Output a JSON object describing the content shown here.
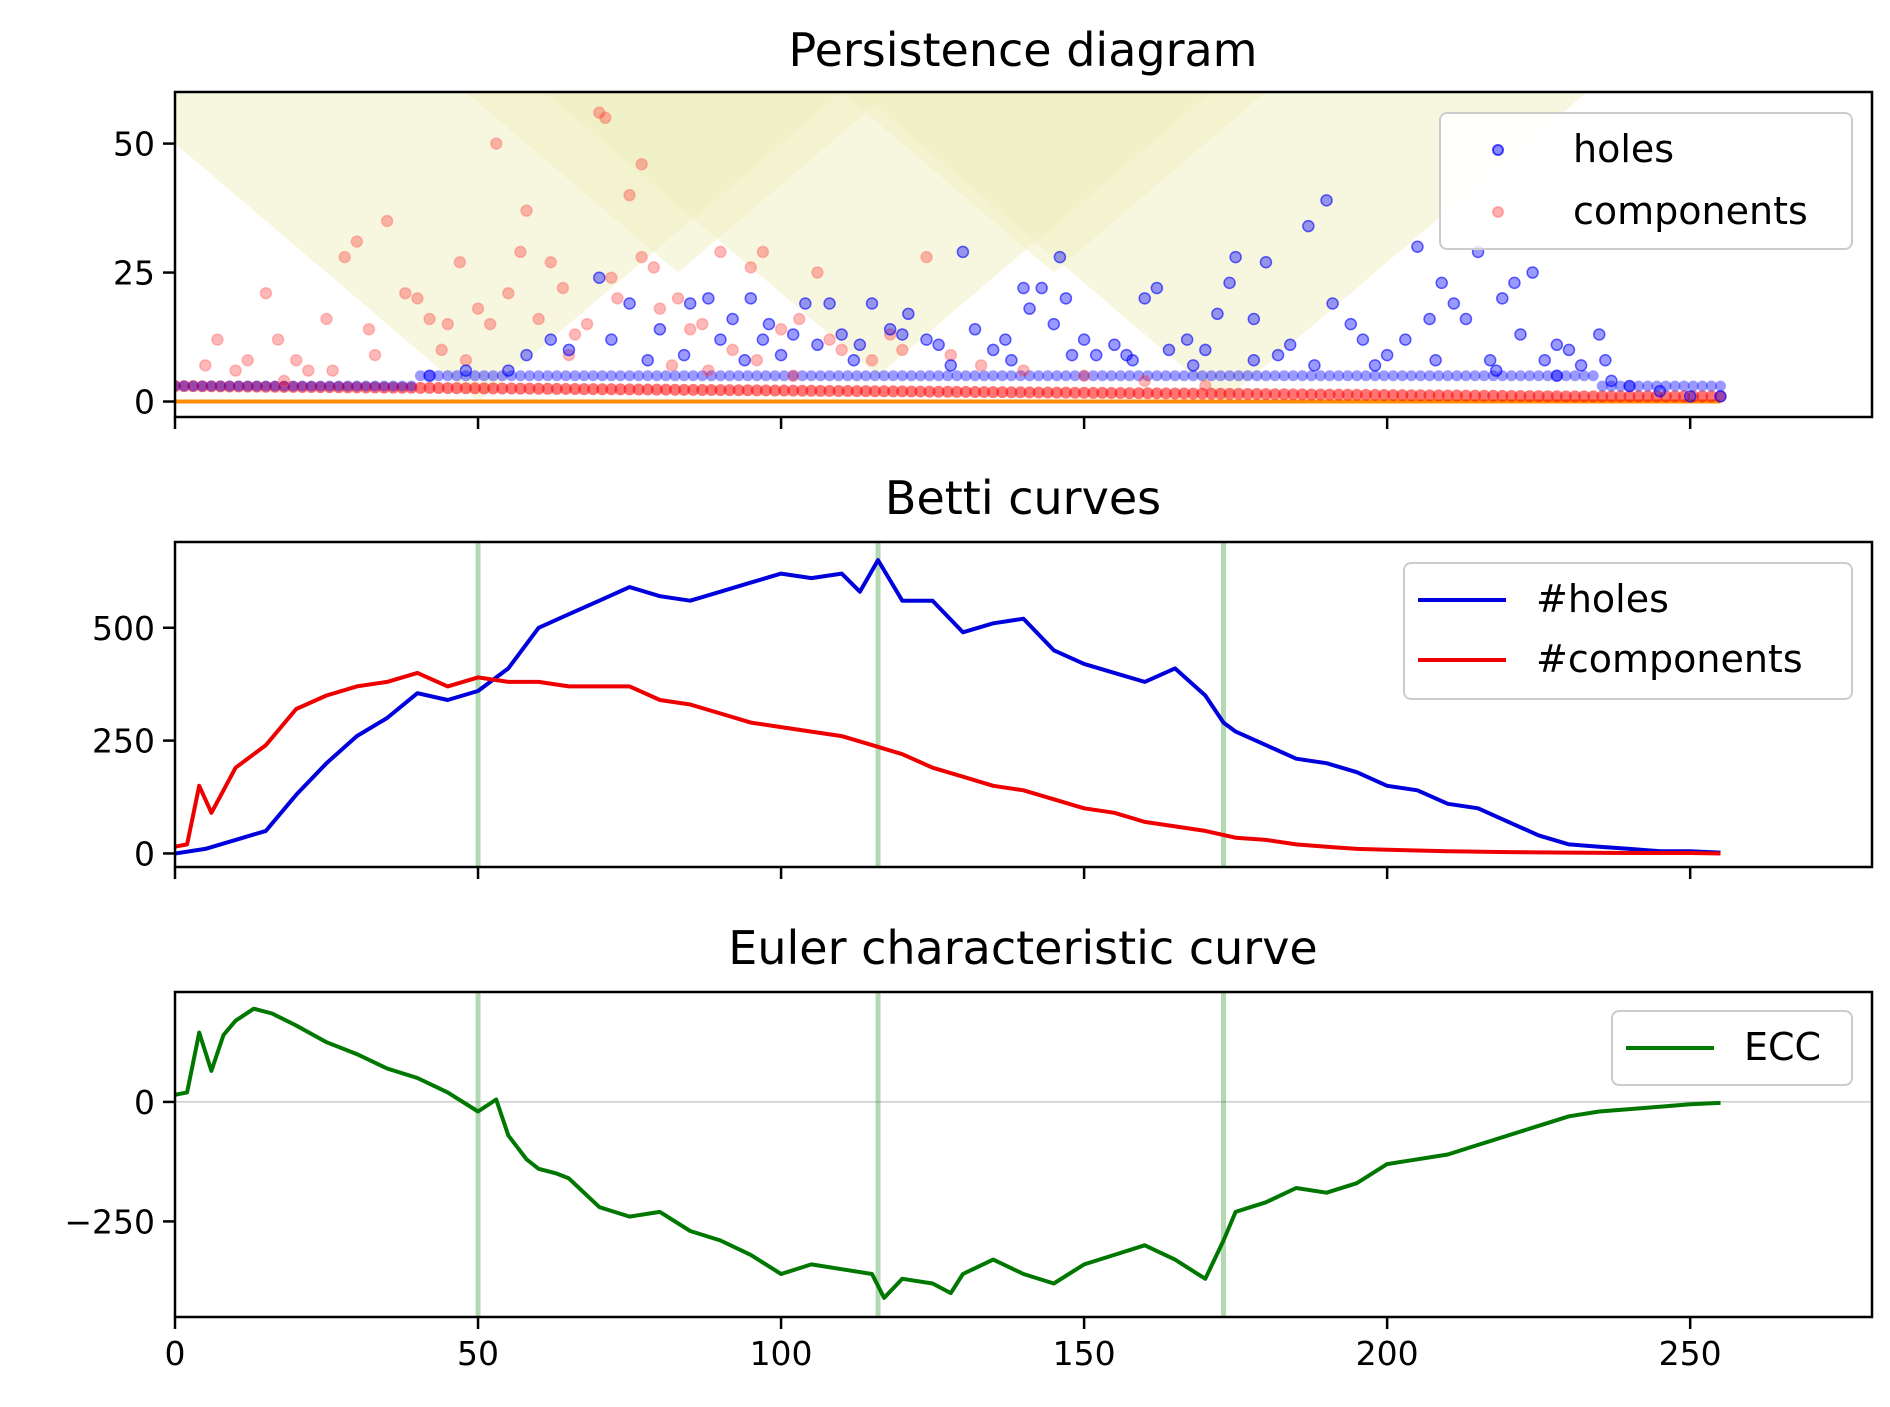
{
  "chart_data": [
    {
      "type": "scatter",
      "title": "Persistence diagram",
      "xlabel": "",
      "ylabel": "",
      "xlim": [
        0,
        280
      ],
      "ylim": [
        -3,
        60
      ],
      "xticks": [
        0,
        50,
        100,
        150,
        200,
        250
      ],
      "yticks": [
        0,
        25,
        50
      ],
      "show_x_tick_labels": false,
      "legend": {
        "position": "top-right",
        "entries": [
          "holes",
          "components"
        ]
      },
      "colors": {
        "holes": "#0000ff",
        "components": "#ff0000",
        "diagonal": "#ff8c00",
        "shade": "#f0f0c0"
      },
      "shaded_regions": [
        {
          "apex_x": 50,
          "half_width": 60,
          "top_y": 60
        },
        {
          "apex_x": 83,
          "half_width": 35,
          "top_y": 60
        },
        {
          "apex_x": 116,
          "half_width": 55,
          "top_y": 60
        },
        {
          "apex_x": 145,
          "half_width": 35,
          "top_y": 60
        },
        {
          "apex_x": 173,
          "half_width": 60,
          "top_y": 60
        }
      ],
      "series": [
        {
          "name": "holes",
          "points": [
            [
              70,
              24
            ],
            [
              75,
              19
            ],
            [
              80,
              14
            ],
            [
              85,
              19
            ],
            [
              88,
              20
            ],
            [
              92,
              16
            ],
            [
              95,
              20
            ],
            [
              97,
              12
            ],
            [
              98,
              15
            ],
            [
              102,
              13
            ],
            [
              104,
              19
            ],
            [
              106,
              11
            ],
            [
              108,
              19
            ],
            [
              110,
              13
            ],
            [
              113,
              11
            ],
            [
              115,
              19
            ],
            [
              118,
              14
            ],
            [
              120,
              13
            ],
            [
              121,
              17
            ],
            [
              124,
              12
            ],
            [
              126,
              11
            ],
            [
              130,
              29
            ],
            [
              132,
              14
            ],
            [
              135,
              10
            ],
            [
              137,
              12
            ],
            [
              140,
              22
            ],
            [
              141,
              18
            ],
            [
              143,
              22
            ],
            [
              145,
              15
            ],
            [
              146,
              28
            ],
            [
              147,
              20
            ],
            [
              150,
              12
            ],
            [
              152,
              9
            ],
            [
              155,
              11
            ],
            [
              157,
              9
            ],
            [
              160,
              20
            ],
            [
              162,
              22
            ],
            [
              164,
              10
            ],
            [
              167,
              12
            ],
            [
              170,
              10
            ],
            [
              172,
              17
            ],
            [
              174,
              23
            ],
            [
              175,
              28
            ],
            [
              178,
              16
            ],
            [
              180,
              27
            ],
            [
              182,
              9
            ],
            [
              184,
              11
            ],
            [
              187,
              34
            ],
            [
              190,
              39
            ],
            [
              191,
              19
            ],
            [
              194,
              15
            ],
            [
              196,
              12
            ],
            [
              200,
              9
            ],
            [
              203,
              12
            ],
            [
              205,
              30
            ],
            [
              207,
              16
            ],
            [
              209,
              23
            ],
            [
              211,
              19
            ],
            [
              213,
              16
            ],
            [
              215,
              29
            ],
            [
              217,
              8
            ],
            [
              219,
              20
            ],
            [
              221,
              23
            ],
            [
              222,
              13
            ],
            [
              224,
              25
            ],
            [
              226,
              8
            ],
            [
              228,
              11
            ],
            [
              230,
              10
            ],
            [
              232,
              7
            ],
            [
              235,
              13
            ],
            [
              237,
              4
            ],
            [
              240,
              3
            ],
            [
              245,
              2
            ],
            [
              250,
              1
            ],
            [
              255,
              1
            ],
            [
              62,
              12
            ],
            [
              58,
              9
            ],
            [
              65,
              10
            ],
            [
              90,
              12
            ],
            [
              100,
              9
            ],
            [
              112,
              8
            ],
            [
              128,
              7
            ],
            [
              138,
              8
            ],
            [
              148,
              9
            ],
            [
              158,
              8
            ],
            [
              168,
              7
            ],
            [
              178,
              8
            ],
            [
              188,
              7
            ],
            [
              198,
              7
            ],
            [
              208,
              8
            ],
            [
              218,
              6
            ],
            [
              228,
              5
            ],
            [
              236,
              8
            ],
            [
              42,
              5
            ],
            [
              48,
              6
            ],
            [
              55,
              6
            ],
            [
              72,
              12
            ],
            [
              78,
              8
            ],
            [
              84,
              9
            ],
            [
              94,
              8
            ]
          ]
        },
        {
          "name": "components",
          "points": [
            [
              5,
              7
            ],
            [
              7,
              12
            ],
            [
              10,
              6
            ],
            [
              12,
              8
            ],
            [
              15,
              21
            ],
            [
              17,
              12
            ],
            [
              20,
              8
            ],
            [
              22,
              6
            ],
            [
              25,
              16
            ],
            [
              28,
              28
            ],
            [
              30,
              31
            ],
            [
              32,
              14
            ],
            [
              35,
              35
            ],
            [
              38,
              21
            ],
            [
              40,
              20
            ],
            [
              42,
              16
            ],
            [
              45,
              15
            ],
            [
              47,
              27
            ],
            [
              50,
              18
            ],
            [
              52,
              15
            ],
            [
              53,
              50
            ],
            [
              55,
              21
            ],
            [
              57,
              29
            ],
            [
              58,
              37
            ],
            [
              60,
              16
            ],
            [
              62,
              27
            ],
            [
              64,
              22
            ],
            [
              66,
              13
            ],
            [
              68,
              15
            ],
            [
              70,
              56
            ],
            [
              71,
              55
            ],
            [
              72,
              24
            ],
            [
              73,
              20
            ],
            [
              75,
              40
            ],
            [
              77,
              28
            ],
            [
              77,
              46
            ],
            [
              79,
              26
            ],
            [
              80,
              18
            ],
            [
              83,
              20
            ],
            [
              85,
              14
            ],
            [
              87,
              15
            ],
            [
              90,
              29
            ],
            [
              92,
              10
            ],
            [
              95,
              26
            ],
            [
              97,
              29
            ],
            [
              100,
              14
            ],
            [
              103,
              16
            ],
            [
              106,
              25
            ],
            [
              108,
              12
            ],
            [
              110,
              10
            ],
            [
              115,
              8
            ],
            [
              118,
              13
            ],
            [
              120,
              10
            ],
            [
              124,
              28
            ],
            [
              128,
              9
            ],
            [
              133,
              7
            ],
            [
              140,
              6
            ],
            [
              150,
              5
            ],
            [
              160,
              4
            ],
            [
              170,
              3
            ],
            [
              18,
              4
            ],
            [
              26,
              6
            ],
            [
              33,
              9
            ],
            [
              44,
              10
            ],
            [
              48,
              8
            ],
            [
              65,
              9
            ],
            [
              82,
              7
            ],
            [
              88,
              6
            ],
            [
              96,
              8
            ],
            [
              102,
              5
            ]
          ]
        }
      ]
    },
    {
      "type": "line",
      "title": "Betti curves",
      "xlabel": "",
      "ylabel": "",
      "xlim": [
        0,
        280
      ],
      "ylim": [
        -30,
        690
      ],
      "xticks": [
        0,
        50,
        100,
        150,
        200,
        250
      ],
      "yticks": [
        0,
        250,
        500
      ],
      "show_x_tick_labels": false,
      "vlines": [
        50,
        116,
        173
      ],
      "legend": {
        "position": "top-right",
        "entries": [
          "#holes",
          "#components"
        ]
      },
      "series": [
        {
          "name": "#holes",
          "color": "#0000dd",
          "x": [
            0,
            5,
            10,
            15,
            20,
            25,
            30,
            35,
            40,
            45,
            50,
            55,
            60,
            65,
            70,
            75,
            80,
            85,
            90,
            95,
            100,
            105,
            110,
            113,
            116,
            120,
            125,
            130,
            135,
            140,
            145,
            150,
            155,
            160,
            165,
            170,
            173,
            175,
            180,
            185,
            190,
            195,
            200,
            205,
            210,
            215,
            220,
            225,
            230,
            235,
            240,
            245,
            250,
            255
          ],
          "values": [
            0,
            10,
            30,
            50,
            130,
            200,
            260,
            300,
            355,
            340,
            360,
            410,
            500,
            530,
            560,
            590,
            570,
            560,
            580,
            600,
            620,
            610,
            620,
            580,
            650,
            560,
            560,
            490,
            510,
            520,
            450,
            420,
            400,
            380,
            410,
            350,
            290,
            270,
            240,
            210,
            200,
            180,
            150,
            140,
            110,
            100,
            70,
            40,
            20,
            15,
            10,
            5,
            5,
            2
          ]
        },
        {
          "name": "#components",
          "color": "#ee0000",
          "x": [
            0,
            2,
            4,
            6,
            8,
            10,
            15,
            20,
            25,
            30,
            35,
            40,
            45,
            50,
            55,
            60,
            65,
            70,
            75,
            80,
            85,
            90,
            95,
            100,
            105,
            110,
            115,
            120,
            125,
            130,
            135,
            140,
            145,
            150,
            155,
            160,
            165,
            170,
            175,
            180,
            185,
            190,
            195,
            200,
            210,
            220,
            230,
            240,
            250,
            255
          ],
          "values": [
            15,
            20,
            150,
            90,
            140,
            190,
            240,
            320,
            350,
            370,
            380,
            400,
            370,
            390,
            380,
            380,
            370,
            370,
            370,
            340,
            330,
            310,
            290,
            280,
            270,
            260,
            240,
            220,
            190,
            170,
            150,
            140,
            120,
            100,
            90,
            70,
            60,
            50,
            35,
            30,
            20,
            15,
            10,
            8,
            5,
            3,
            2,
            1,
            1,
            0
          ]
        }
      ]
    },
    {
      "type": "line",
      "title": "Euler characteristic curve",
      "xlabel": "",
      "ylabel": "",
      "xlim": [
        0,
        280
      ],
      "ylim": [
        -450,
        230
      ],
      "xticks": [
        0,
        50,
        100,
        150,
        200,
        250
      ],
      "xtick_labels": [
        "0",
        "50",
        "100",
        "150",
        "200",
        "250"
      ],
      "yticks": [
        -250,
        0
      ],
      "ytick_labels": [
        "−250",
        "0"
      ],
      "vlines": [
        50,
        116,
        173
      ],
      "hline": 0,
      "legend": {
        "position": "top-right",
        "entries": [
          "ECC"
        ]
      },
      "series": [
        {
          "name": "ECC",
          "color": "#007700",
          "x": [
            0,
            2,
            4,
            6,
            8,
            10,
            13,
            16,
            20,
            25,
            30,
            35,
            40,
            45,
            50,
            53,
            55,
            58,
            60,
            63,
            65,
            70,
            75,
            80,
            85,
            90,
            95,
            100,
            105,
            110,
            115,
            117,
            120,
            125,
            128,
            130,
            135,
            140,
            145,
            150,
            155,
            160,
            165,
            170,
            173,
            175,
            180,
            185,
            190,
            195,
            200,
            205,
            210,
            215,
            220,
            225,
            230,
            235,
            240,
            245,
            250,
            255
          ],
          "values": [
            15,
            20,
            145,
            65,
            140,
            170,
            195,
            185,
            160,
            125,
            100,
            70,
            50,
            20,
            -20,
            5,
            -70,
            -120,
            -140,
            -150,
            -160,
            -220,
            -240,
            -230,
            -270,
            -290,
            -320,
            -360,
            -340,
            -350,
            -360,
            -410,
            -370,
            -380,
            -400,
            -360,
            -330,
            -360,
            -380,
            -340,
            -320,
            -300,
            -330,
            -370,
            -290,
            -230,
            -210,
            -180,
            -190,
            -170,
            -130,
            -120,
            -110,
            -90,
            -70,
            -50,
            -30,
            -20,
            -15,
            -10,
            -5,
            -2
          ]
        }
      ]
    }
  ]
}
